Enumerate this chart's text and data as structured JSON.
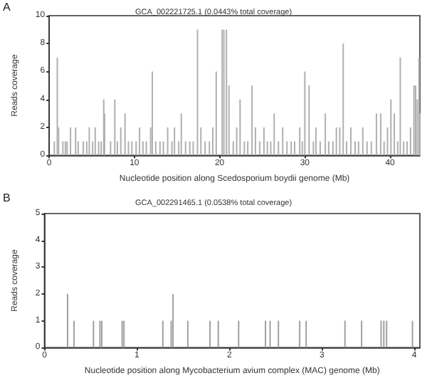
{
  "chart_data": [
    {
      "type": "bar",
      "title": "GCA_002221725.1 (0.0443% total coverage)",
      "xlabel": "Nucleotide position along Scedosporium boydii genome (Mb)",
      "ylabel": "Reads coverage",
      "annotations": [
        "A"
      ],
      "color": "#b0b0b0",
      "x": [
        0.6,
        0.95,
        1.1,
        1.6,
        1.9,
        2.1,
        2.5,
        3.1,
        3.4,
        4.0,
        4.4,
        4.7,
        5.1,
        5.4,
        5.8,
        6.1,
        6.4,
        6.5,
        7.2,
        7.7,
        8.0,
        8.4,
        8.9,
        9.3,
        9.7,
        10.2,
        10.6,
        11.0,
        11.4,
        11.9,
        12.1,
        12.5,
        13.0,
        13.4,
        13.9,
        14.4,
        14.7,
        15.2,
        15.5,
        16.0,
        16.5,
        16.9,
        17.4,
        17.8,
        18.3,
        18.8,
        19.2,
        19.6,
        20.3,
        20.5,
        20.8,
        21.1,
        21.6,
        22.0,
        22.4,
        22.9,
        23.3,
        23.8,
        24.2,
        24.7,
        25.2,
        25.6,
        26.0,
        26.4,
        26.9,
        27.4,
        27.9,
        28.4,
        28.8,
        29.4,
        29.7,
        30.0,
        30.5,
        31.0,
        31.3,
        31.8,
        32.4,
        32.8,
        33.3,
        33.7,
        34.1,
        34.5,
        34.9,
        35.4,
        35.9,
        36.3,
        36.8,
        37.3,
        37.8,
        38.4,
        38.9,
        39.3,
        39.7,
        40.1,
        40.5,
        40.9,
        41.2,
        41.6,
        42.0,
        42.4,
        42.8,
        43.0,
        43.2,
        43.4,
        43.5
      ],
      "values": [
        1,
        7,
        2,
        1,
        1,
        1,
        2,
        2,
        1,
        1,
        1,
        2,
        1,
        2,
        1,
        1,
        4,
        3,
        1,
        4,
        1,
        2,
        3,
        1,
        1,
        1,
        2,
        1,
        1,
        2,
        6,
        1,
        1,
        1,
        2,
        1,
        2,
        1,
        3,
        1,
        1,
        1,
        9,
        2,
        1,
        1,
        2,
        6,
        9,
        9,
        9,
        5,
        1,
        2,
        4,
        1,
        1,
        5,
        2,
        1,
        2,
        1,
        1,
        3,
        1,
        2,
        1,
        1,
        1,
        2,
        1,
        6,
        5,
        1,
        2,
        1,
        3,
        1,
        1,
        2,
        2,
        8,
        1,
        2,
        1,
        1,
        2,
        1,
        1,
        3,
        3,
        1,
        2,
        4,
        3,
        1,
        7,
        1,
        1,
        2,
        5,
        5,
        4,
        7,
        3
      ],
      "xlim": [
        0,
        43.5
      ],
      "xticks": [
        0,
        10,
        20,
        30,
        40
      ],
      "ylim": [
        0,
        10
      ],
      "yticks": [
        0,
        2,
        4,
        6,
        8,
        10
      ],
      "grid": false
    },
    {
      "type": "bar",
      "title": "GCA_002291465.1 (0.0538% total coverage)",
      "xlabel": "Nucleotide position along Mycobacterium avium complex (MAC) genome (Mb)",
      "ylabel": "Reads coverage",
      "annotations": [
        "B"
      ],
      "color": "#a0a0a0",
      "x": [
        0.25,
        0.32,
        0.53,
        0.6,
        0.62,
        0.84,
        0.86,
        1.28,
        1.37,
        1.39,
        1.55,
        1.79,
        1.88,
        2.1,
        2.39,
        2.44,
        2.53,
        2.76,
        2.83,
        3.25,
        3.43,
        3.64,
        3.67,
        3.7,
        3.98
      ],
      "values": [
        2,
        1,
        1,
        1,
        1,
        1,
        1,
        1,
        1,
        2,
        1,
        1,
        1,
        1,
        1,
        1,
        1,
        1,
        1,
        1,
        1,
        1,
        1,
        1,
        1
      ],
      "xlim": [
        0,
        4.06
      ],
      "xticks": [
        0,
        1,
        2,
        3,
        4
      ],
      "ylim": [
        0,
        5
      ],
      "yticks": [
        0,
        1,
        2,
        3,
        4,
        5
      ],
      "grid": false
    }
  ]
}
